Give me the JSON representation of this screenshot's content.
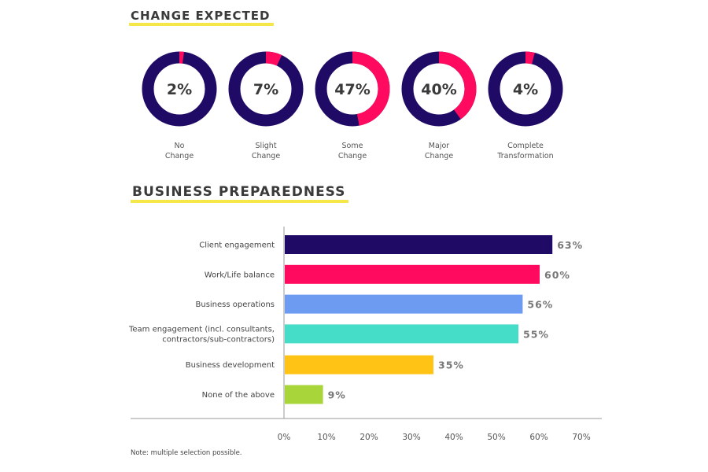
{
  "section_titles": {
    "change": "CHANGE EXPECTED",
    "preparedness": "BUSINESS PREPAREDNESS"
  },
  "colors": {
    "donut_base": "#1f0a66",
    "donut_accent": "#ff0a5e",
    "highlight": "#f5e64a"
  },
  "note": "Note: multiple selection possible.",
  "chart_data": [
    {
      "type": "pie",
      "title": "CHANGE EXPECTED",
      "categories": [
        "No Change",
        "Slight Change",
        "Some Change",
        "Major Change",
        "Complete Transformation"
      ],
      "labels": [
        [
          "No",
          "Change"
        ],
        [
          "Slight",
          "Change"
        ],
        [
          "Some",
          "Change"
        ],
        [
          "Major",
          "Change"
        ],
        [
          "Complete",
          "Transformation"
        ]
      ],
      "values": [
        2,
        7,
        47,
        40,
        4
      ],
      "value_labels": [
        "2%",
        "7%",
        "47%",
        "40%",
        "4%"
      ]
    },
    {
      "type": "bar",
      "orientation": "horizontal",
      "title": "BUSINESS PREPAREDNESS",
      "categories": [
        [
          "Client engagement"
        ],
        [
          "Work/Life balance"
        ],
        [
          "Business operations"
        ],
        [
          "Team engagement (incl. consultants,",
          "contractors/sub-contractors)"
        ],
        [
          "Business development"
        ],
        [
          "None of the above"
        ]
      ],
      "values": [
        63,
        60,
        56,
        55,
        35,
        9
      ],
      "value_labels": [
        "63%",
        "60%",
        "56%",
        "55%",
        "35%",
        "9%"
      ],
      "colors": [
        "#1f0a66",
        "#ff0a5e",
        "#6d9bf2",
        "#45dcc8",
        "#ffc316",
        "#a8d63a"
      ],
      "xlim": [
        0,
        70
      ],
      "ticks": [
        0,
        10,
        20,
        30,
        40,
        50,
        60,
        70
      ],
      "tick_labels": [
        "0%",
        "10%",
        "20%",
        "30%",
        "40%",
        "50%",
        "60%",
        "70%"
      ],
      "grid": false
    }
  ]
}
